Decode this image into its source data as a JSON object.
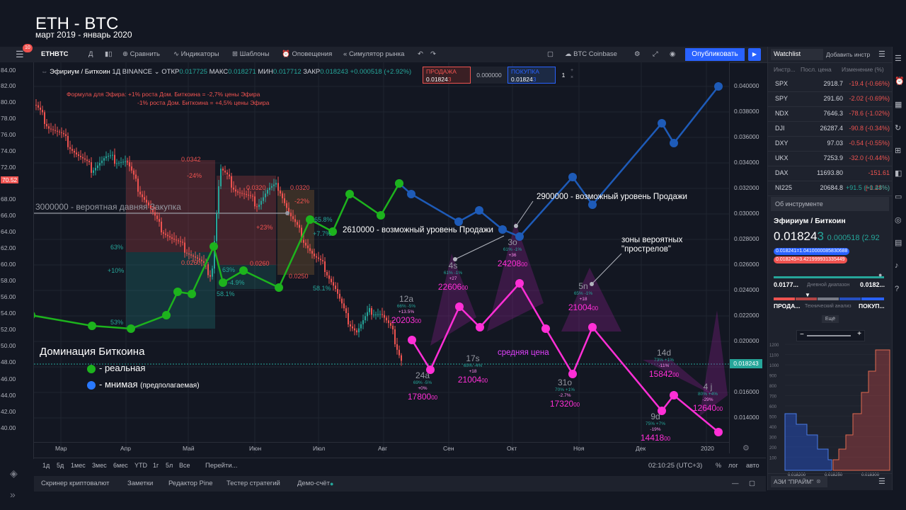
{
  "title": "ETH - BTC",
  "subtitle": "март 2019 - январь 2020",
  "toolbar": {
    "symbol": "ETHBTC",
    "interval": "Д",
    "compare": "Сравнить",
    "indicators": "Индикаторы",
    "templates": "Шаблоны",
    "alerts": "Оповещения",
    "replay": "Симулятор рынка",
    "btc_coinbase": "BTC Coinbase",
    "publish": "Опубликовать",
    "notification_badge": "10"
  },
  "legend": {
    "name": "Эфириум / Биткоин",
    "tf": "1Д",
    "exchange": "BINANCE",
    "open_label": "ОТКР",
    "open": "0.017725",
    "high_label": "МАКС",
    "high": "0.018271",
    "low_label": "МИН",
    "low": "0.017712",
    "close_label": "ЗАКР",
    "close": "0.018243",
    "change": "+0.000518 (+2.92%)",
    "sell_label": "ПРОДАЖА",
    "sell_price": "0.01824",
    "sell_digit": "3",
    "spread": "0.000000",
    "buy_label": "ПОКУПКА",
    "buy_price": "0.01824",
    "buy_digit": "3",
    "qty": "1"
  },
  "annotations": {
    "formula1": "Формула для Эфира: +1% роста Дом. Биткоина = -2,7% цены Эфира",
    "formula2": "-1% роста Дом. Биткоина = +4,5% цены Эфира",
    "buy_zone": "3000000 - вероятная давняя Закупка",
    "sell_2610": "2610000 - возможный уровень Продажи",
    "sell_2900": "2900000 - возможный уровень Продажи",
    "zones1": "зоны вероятных",
    "zones2": "\"прострелов\"",
    "avg_price": "средняя цена",
    "dominance_title": "Доминация Биткоина",
    "real": "- реальная",
    "imag": "- мнимая",
    "imag_note": "(предполагаемая)",
    "box1_top": "0.0342",
    "box1_pct": "-24%",
    "box1_bottom": "0.0260",
    "box2_top": "0.0320",
    "box2_pct": "+23%",
    "box2_bottom": "0.0260",
    "box3_top": "0.0320",
    "box3_pct": "-22%",
    "box3_bottom": "0.0250",
    "pct_63a": "63%",
    "pct_10": "+10%",
    "pct_53": "53%",
    "pct_63b": "63%",
    "pct_49": "-4.9%",
    "pct_581": "58.1%",
    "pct_658": "65.8%",
    "pct_77": "+7.7%",
    "pct_581b": "58.1%"
  },
  "points": [
    {
      "id": "12a",
      "sub1": "66% -5%",
      "sub2": "+13.5%",
      "price": "20203",
      "unit": "00"
    },
    {
      "id": "4s",
      "sub1": "61% -1%",
      "sub2": "+27",
      "price": "22606",
      "unit": "00"
    },
    {
      "id": "3o",
      "sub1": "61% -1%",
      "sub2": "+36",
      "price": "24208",
      "unit": "00"
    },
    {
      "id": "5n",
      "sub1": "65% -1%",
      "sub2": "+18",
      "price": "21004",
      "unit": "00"
    },
    {
      "id": "24a",
      "sub1": "69% -5%",
      "sub2": "+0%",
      "price": "17800",
      "unit": "00"
    },
    {
      "id": "17s",
      "sub1": "65% -4%",
      "sub2": "+18",
      "price": "21004",
      "unit": "00"
    },
    {
      "id": "31o",
      "sub1": "70% +1%",
      "sub2": "-2.7%",
      "price": "17320",
      "unit": "00"
    },
    {
      "id": "14d",
      "sub1": "73% +1%",
      "sub2": "-11%",
      "price": "15842",
      "unit": "00"
    },
    {
      "id": "9d",
      "sub1": "75% +7%",
      "sub2": "-19%",
      "price": "14418",
      "unit": "00"
    },
    {
      "id": "4 j",
      "sub1": "80% +4%",
      "sub2": "-29%",
      "price": "12640",
      "unit": "00"
    }
  ],
  "left_axis": [
    "84.00",
    "82.00",
    "80.00",
    "78.00",
    "76.00",
    "74.00",
    "72.00",
    "70.52",
    "68.00",
    "66.00",
    "64.00",
    "62.00",
    "60.00",
    "58.00",
    "56.00",
    "54.00",
    "52.00",
    "50.00",
    "48.00",
    "46.00",
    "44.00",
    "42.00",
    "40.00"
  ],
  "right_axis": [
    "0.040000",
    "0.038000",
    "0.036000",
    "0.034000",
    "0.032000",
    "0.030000",
    "0.028000",
    "0.026000",
    "0.024000",
    "0.022000",
    "0.020000",
    "0.018000",
    "0.016000",
    "0.014000"
  ],
  "current_price": "0.018243",
  "time_axis": [
    "Мар",
    "Апр",
    "Май",
    "Июн",
    "Июл",
    "Авг",
    "Сен",
    "Окт",
    "Ноя",
    "Дек",
    "2020"
  ],
  "ranges": [
    "1д",
    "5д",
    "1мес",
    "3мес",
    "6мес",
    "YTD",
    "1г",
    "5л",
    "Все"
  ],
  "goto": "Перейти...",
  "clock": "02:10:25 (UTC+3)",
  "scale_opts": [
    "%",
    "лог",
    "авто"
  ],
  "bottom_tabs": [
    "Скринер криптовалют",
    "Заметки",
    "Редактор Pine",
    "Тестер стратегий",
    "Демо-счёт"
  ],
  "watchlist": {
    "tab": "Watchlist",
    "add": "Добавить инстр",
    "col1": "Инстр...",
    "col2": "Посл. цена",
    "col3": "Изменение (%)",
    "rows": [
      {
        "sym": "SPX",
        "last": "2918.7",
        "chg": "-19.4 (-0.66%)",
        "color": "#ef5350"
      },
      {
        "sym": "SPY",
        "last": "291.60",
        "chg": "-2.02 (-0.69%)",
        "color": "#ef5350"
      },
      {
        "sym": "NDX",
        "last": "7646.3",
        "chg": "-78.6 (-1.02%)",
        "color": "#ef5350"
      },
      {
        "sym": "DJI",
        "last": "26287.4",
        "chg": "-90.8 (-0.34%)",
        "color": "#ef5350"
      },
      {
        "sym": "DXY",
        "last": "97.03",
        "chg": "-0.54 (-0.55%)",
        "color": "#ef5350"
      },
      {
        "sym": "UKX",
        "last": "7253.9",
        "chg": "-32.0 (-0.44%)",
        "color": "#ef5350"
      },
      {
        "sym": "DAX",
        "last": "11693.80",
        "chg": "-151.61 (-1.28%)",
        "color": "#ef5350"
      },
      {
        "sym": "NI225",
        "last": "20684.8",
        "chg": "+91.5 (+0.44%)",
        "color": "#26a69a"
      }
    ]
  },
  "details": {
    "header": "Об инструменте",
    "name": "Эфириум / Биткоин",
    "price": "0.01824",
    "price_digit": "3",
    "change": "0.000518 (2.92",
    "bid_badge": "0.018241=1.0410000085830688",
    "ask_badge": "0.018245=3.421999931335449",
    "range_low": "0.0177...",
    "range_label": "Дневной диапазон",
    "range_high": "0.0182...",
    "sell": "ПРОДА...",
    "tech": "Технический анализ",
    "buy": "ПОКУП...",
    "more": "Ещё",
    "depth_axis": [
      "1200",
      "1100",
      "1000",
      "900",
      "800",
      "700",
      "600",
      "500",
      "400",
      "300",
      "200",
      "100"
    ],
    "depth_x": [
      "0.018200",
      "0.018250",
      "0.018300"
    ],
    "broker": "АЭИ \"ПРАЙМ\""
  }
}
